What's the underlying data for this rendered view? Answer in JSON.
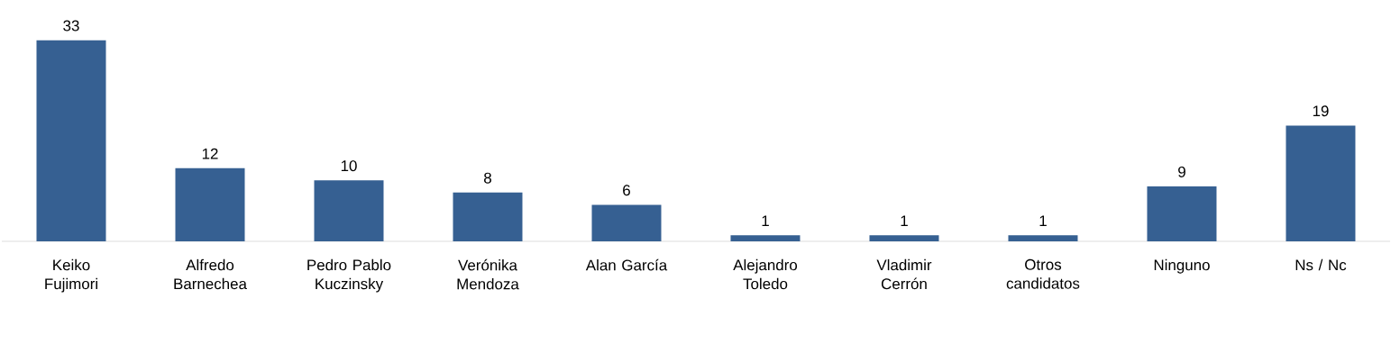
{
  "chart_data": {
    "type": "bar",
    "categories": [
      "Keiko Fujimori",
      "Alfredo Barnechea",
      "Pedro Pablo Kuczinsky",
      "Verónika Mendoza",
      "Alan García",
      "Alejandro Toledo",
      "Vladimir Cerrón",
      "Otros candidatos",
      "Ninguno",
      "Ns / Nc"
    ],
    "values": [
      33,
      12,
      10,
      8,
      6,
      1,
      1,
      1,
      9,
      19
    ],
    "color": "#366092",
    "data_labels": true,
    "tick_labels": "x"
  }
}
